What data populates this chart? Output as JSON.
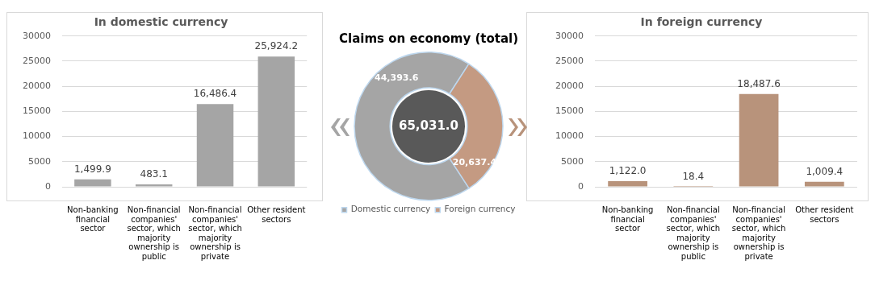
{
  "chart_data": [
    {
      "type": "bar",
      "title": "In domestic currency",
      "categories": [
        "Non-banking financial sector",
        "Non-financial companies' sector, which majority ownership is public",
        "Non-financial companies' sector, which majority ownership is private",
        "Other resident sectors"
      ],
      "values": [
        1499.9,
        483.1,
        16486.4,
        25924.2
      ],
      "color": "#a5a5a5",
      "value_labels": [
        "1,499.9",
        "483.1",
        "16,486.4",
        "25,924.2"
      ],
      "ylim": [
        0,
        30000
      ],
      "yticks": [
        0,
        5000,
        10000,
        15000,
        20000,
        25000,
        30000
      ],
      "grid": "y",
      "legend": false
    },
    {
      "type": "donut",
      "title": "Claims on economy (total)",
      "categories": [
        "Domestic currency",
        "Foreign currency"
      ],
      "values": [
        44393.6,
        20637.4
      ],
      "colors": [
        "#a5a5a5",
        "#c49a82"
      ],
      "value_labels": [
        "44,393.6",
        "20,637.4"
      ],
      "annotations": [
        "65,031.0"
      ],
      "legend": "bottom"
    },
    {
      "type": "bar",
      "title": "In foreign currency",
      "categories": [
        "Non-banking financial sector",
        "Non-financial companies' sector, which majority ownership is public",
        "Non-financial companies' sector, which majority ownership is private",
        "Other resident sectors"
      ],
      "values": [
        1122.0,
        18.4,
        18487.6,
        1009.4
      ],
      "color": "#b8937b",
      "value_labels": [
        "1,122.0",
        "18.4",
        "18,487.6",
        "1,009.4"
      ],
      "ylim": [
        0,
        30000
      ],
      "yticks": [
        0,
        5000,
        10000,
        15000,
        20000,
        25000,
        30000
      ],
      "grid": "y",
      "legend": false
    }
  ]
}
